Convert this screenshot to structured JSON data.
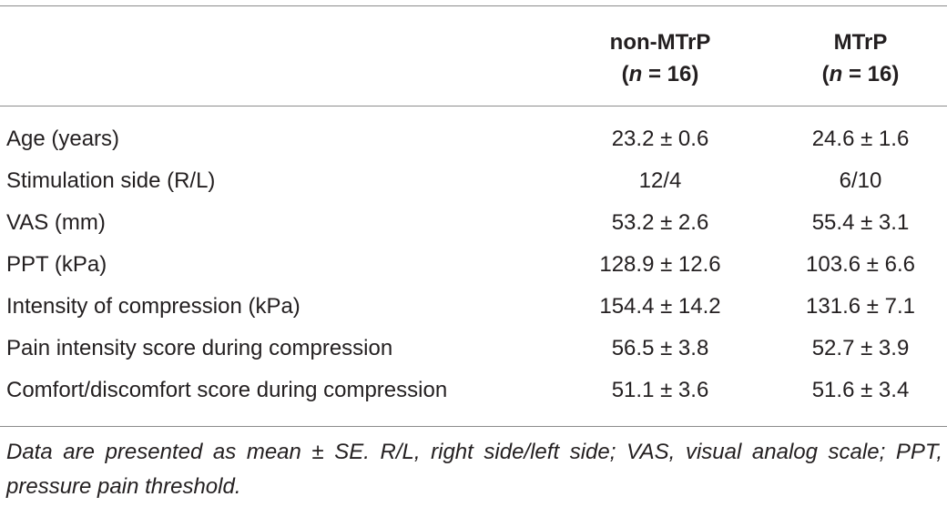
{
  "table": {
    "header": {
      "col1": {
        "line1": "non-MTrP",
        "n_italic": "n",
        "n_rest": " = 16)"
      },
      "col2": {
        "line1": "MTrP",
        "n_italic": "n",
        "n_rest": " = 16)"
      },
      "paren_open": "("
    },
    "rows": [
      {
        "label": "Age (years)",
        "non_mtrp": "23.2 ± 0.6",
        "mtrp": "24.6 ± 1.6"
      },
      {
        "label": "Stimulation side (R/L)",
        "non_mtrp": "12/4",
        "mtrp": "6/10"
      },
      {
        "label": "VAS (mm)",
        "non_mtrp": "53.2 ± 2.6",
        "mtrp": "55.4 ± 3.1"
      },
      {
        "label": "PPT (kPa)",
        "non_mtrp": "128.9 ± 12.6",
        "mtrp": "103.6 ± 6.6"
      },
      {
        "label": "Intensity of compression (kPa)",
        "non_mtrp": "154.4 ± 14.2",
        "mtrp": "131.6 ± 7.1"
      },
      {
        "label": "Pain intensity score during compression",
        "non_mtrp": "56.5 ± 3.8",
        "mtrp": "52.7 ± 3.9"
      },
      {
        "label": "Comfort/discomfort score during compression",
        "non_mtrp": "51.1 ± 3.6",
        "mtrp": "51.6 ± 3.4"
      }
    ],
    "footnote": "Data are presented as mean ± SE. R/L, right side/left side; VAS, visual analog scale; PPT, pressure pain threshold."
  }
}
